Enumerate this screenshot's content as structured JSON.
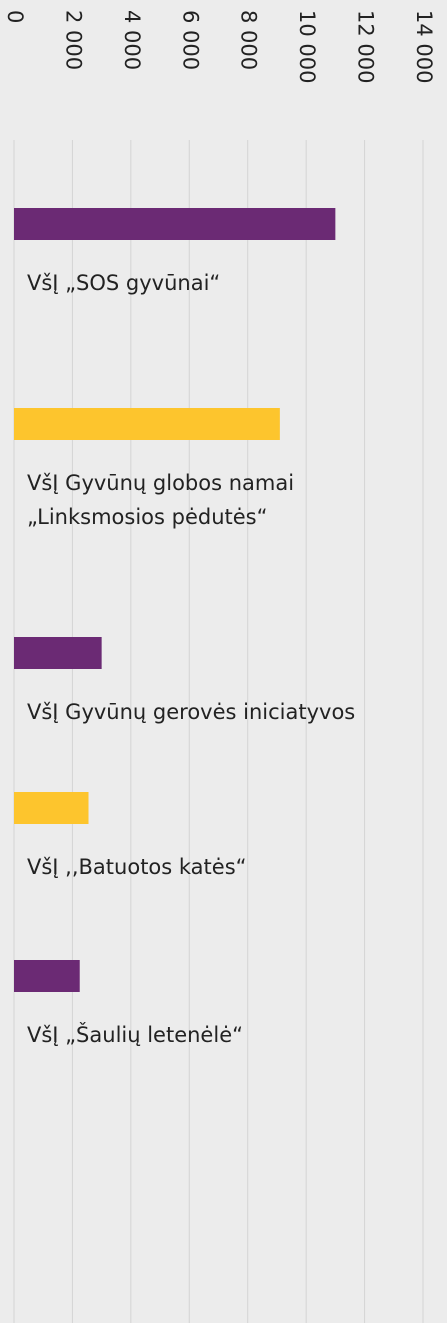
{
  "chart_data": {
    "type": "bar",
    "orientation": "horizontal",
    "categories": [
      "VšĮ „SOS gyvūnai“",
      "VšĮ Gyvūnų globos namai „Linksmosios pėdutės“",
      "VšĮ Gyvūnų gerovės iniciatyvos",
      "VšĮ ,,Batuotos katės“",
      "VšĮ „Šaulių letenėlė“"
    ],
    "values": [
      11000,
      9100,
      3000,
      2550,
      2250
    ],
    "colors": [
      "#6b2a74",
      "#fdc52d",
      "#6b2a74",
      "#fdc52d",
      "#6b2a74"
    ],
    "xlim": [
      0,
      14000
    ],
    "xticks": [
      0,
      {
        "value": 2000,
        "label": "2 000"
      },
      {
        "value": 4000,
        "label": "4 000"
      },
      {
        "value": 6000,
        "label": "6 000"
      },
      {
        "value": 8000,
        "label": "8 000"
      },
      {
        "value": 10000,
        "label": "10 000"
      },
      {
        "value": 12000,
        "label": "12 000"
      },
      {
        "value": 14000,
        "label": "14 000"
      }
    ],
    "grid": true
  }
}
